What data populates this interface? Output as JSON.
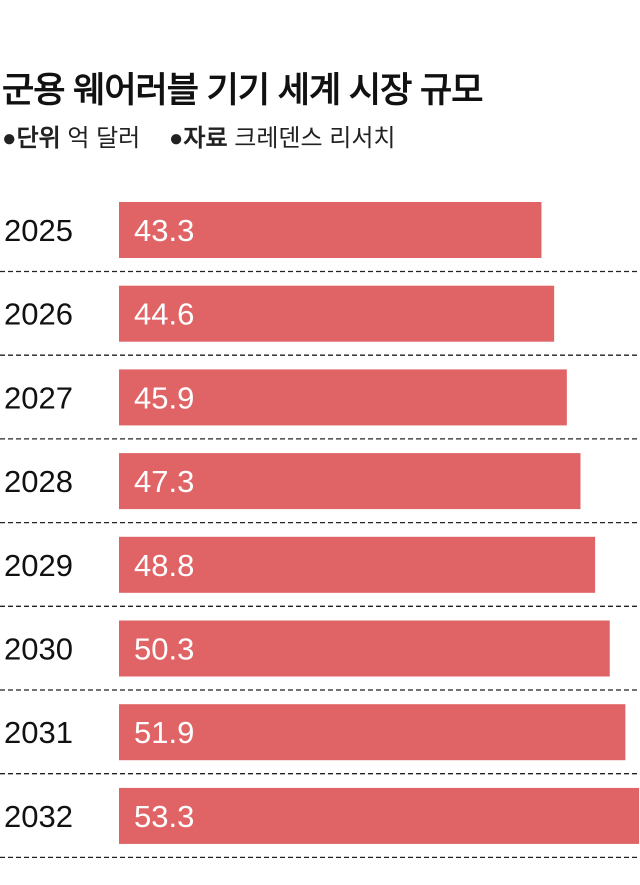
{
  "title": "군용 웨어러블 기기 세계 시장 규모",
  "unit_label": "●단위",
  "unit_value": "억 달러",
  "source_label": "●자료",
  "source_value": "크레덴스 리서치",
  "colors": {
    "bar": "#e06366",
    "label": "#ffffff",
    "divider": "#222222"
  },
  "chart_data": {
    "type": "bar",
    "orientation": "horizontal",
    "categories": [
      "2025",
      "2026",
      "2027",
      "2028",
      "2029",
      "2030",
      "2031",
      "2032"
    ],
    "values": [
      43.3,
      44.6,
      45.9,
      47.3,
      48.8,
      50.3,
      51.9,
      53.3
    ],
    "value_labels": [
      "43.3",
      "44.6",
      "45.9",
      "47.3",
      "48.8",
      "50.3",
      "51.9",
      "53.3"
    ],
    "xlim": [
      0,
      53.4
    ],
    "grid": false,
    "row_dividers": "dashed"
  }
}
